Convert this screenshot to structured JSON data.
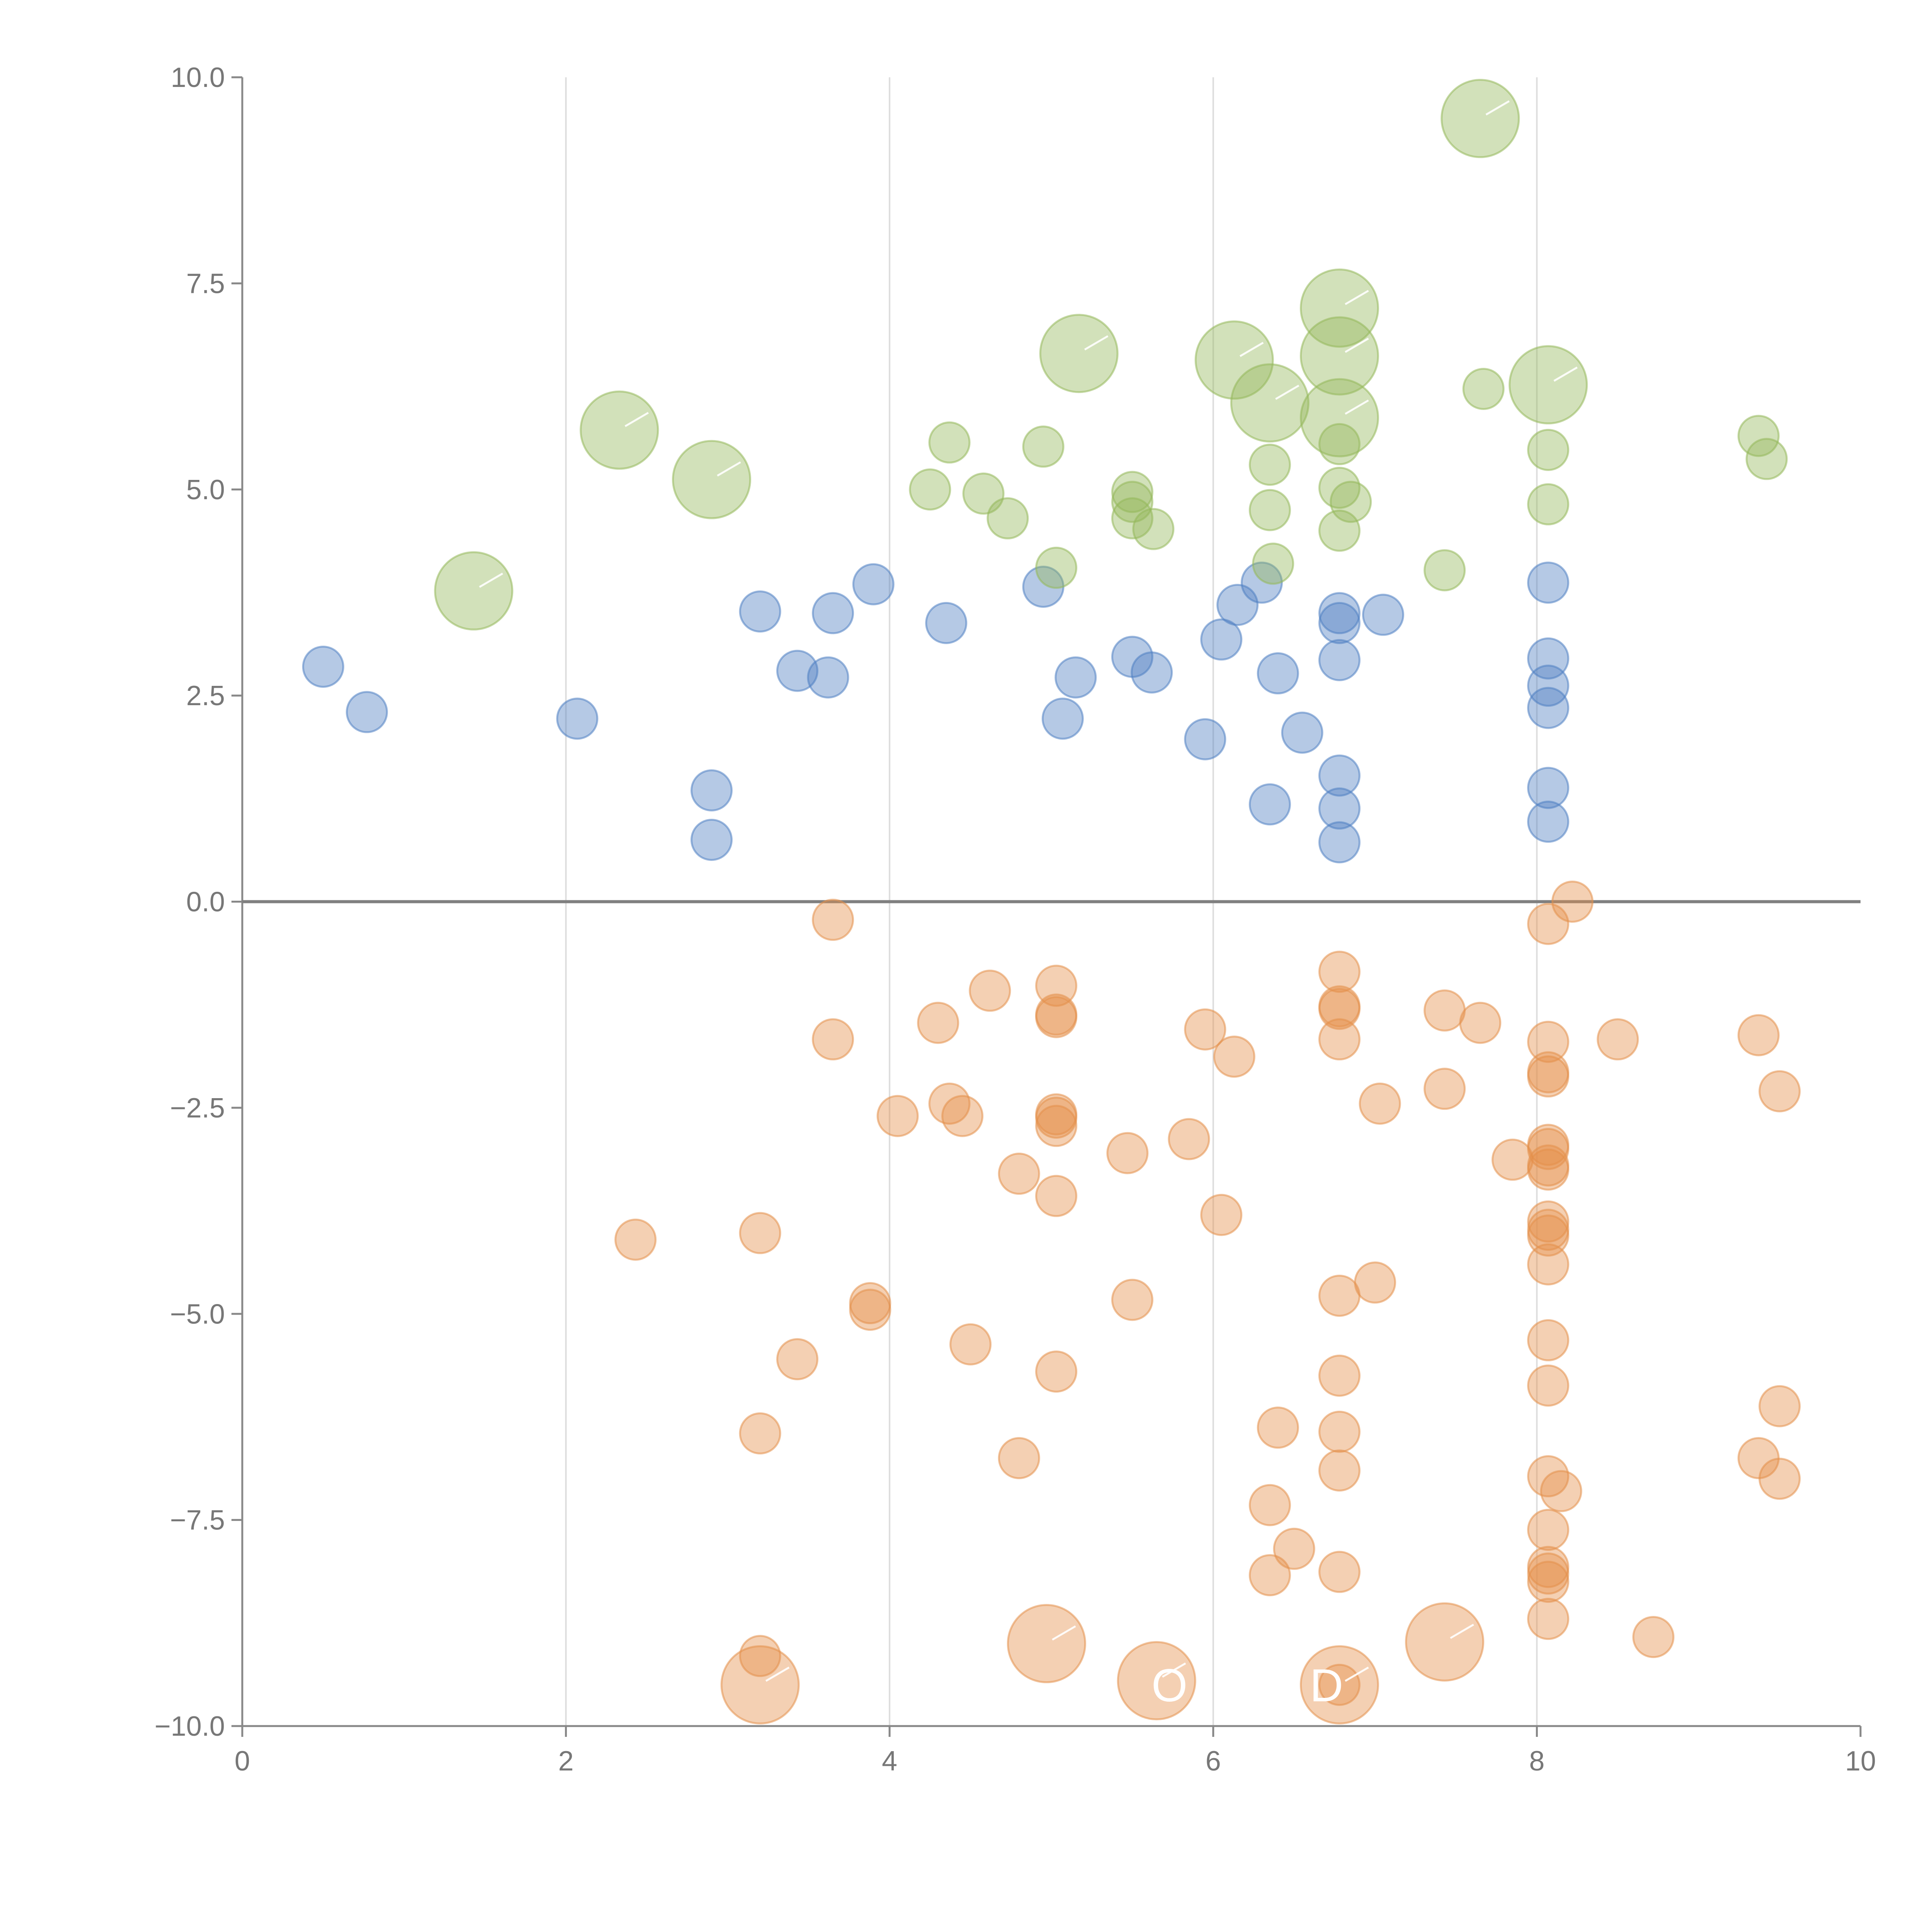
{
  "chart_data": {
    "type": "scatter",
    "title": "",
    "xlabel": "",
    "ylabel": "",
    "xlim": [
      0,
      10
    ],
    "ylim": [
      -10,
      10
    ],
    "x_ticks": [
      {
        "value": 0,
        "label": "0"
      },
      {
        "value": 2,
        "label": "2"
      },
      {
        "value": 4,
        "label": "4"
      },
      {
        "value": 6,
        "label": "6"
      },
      {
        "value": 8,
        "label": "8"
      },
      {
        "value": 10,
        "label": "10"
      }
    ],
    "y_ticks": [
      {
        "value": 10,
        "label": "10.0"
      },
      {
        "value": 7.5,
        "label": "7.5"
      },
      {
        "value": 5,
        "label": "5.0"
      },
      {
        "value": 2.5,
        "label": "2.5"
      },
      {
        "value": 0,
        "label": "0.0"
      },
      {
        "value": -2.5,
        "label": "−2.5"
      },
      {
        "value": -5,
        "label": "−5.0"
      },
      {
        "value": -7.5,
        "label": "−7.5"
      },
      {
        "value": -10,
        "label": "−10.0"
      }
    ],
    "x_grid_at": [
      2,
      4,
      6,
      8
    ],
    "zero_line": true,
    "legend": "none",
    "series": [
      {
        "name": "blue",
        "color": "#4f7fc2",
        "size": 1,
        "points": [
          [
            0.5,
            2.85
          ],
          [
            0.77,
            2.3
          ],
          [
            2.07,
            2.22
          ],
          [
            2.9,
            1.35
          ],
          [
            2.9,
            0.75
          ],
          [
            3.2,
            3.52
          ],
          [
            3.43,
            2.8
          ],
          [
            3.65,
            3.5
          ],
          [
            3.62,
            2.72
          ],
          [
            3.9,
            3.85
          ],
          [
            4.35,
            3.38
          ],
          [
            4.95,
            3.82
          ],
          [
            5.07,
            2.22
          ],
          [
            5.15,
            2.72
          ],
          [
            5.5,
            2.97
          ],
          [
            5.62,
            2.78
          ],
          [
            5.95,
            1.97
          ],
          [
            6.05,
            3.18
          ],
          [
            6.15,
            3.6
          ],
          [
            6.3,
            3.87
          ],
          [
            6.35,
            1.18
          ],
          [
            6.4,
            2.77
          ],
          [
            6.55,
            2.05
          ],
          [
            6.78,
            3.5
          ],
          [
            6.78,
            3.38
          ],
          [
            6.78,
            2.93
          ],
          [
            6.78,
            1.53
          ],
          [
            6.78,
            1.13
          ],
          [
            6.78,
            0.72
          ],
          [
            7.05,
            3.48
          ],
          [
            8.07,
            3.87
          ],
          [
            8.07,
            2.95
          ],
          [
            8.07,
            2.62
          ],
          [
            8.07,
            2.35
          ],
          [
            8.07,
            1.38
          ],
          [
            8.07,
            0.97
          ]
        ]
      },
      {
        "name": "green",
        "color": "#94b85a",
        "size": 1,
        "points": [
          [
            4.25,
            5.0
          ],
          [
            4.37,
            5.57
          ],
          [
            4.58,
            4.95
          ],
          [
            4.73,
            4.65
          ],
          [
            4.95,
            5.52
          ],
          [
            5.03,
            4.05
          ],
          [
            5.5,
            4.97
          ],
          [
            5.5,
            4.85
          ],
          [
            5.5,
            4.65
          ],
          [
            5.63,
            4.52
          ],
          [
            6.35,
            5.3
          ],
          [
            6.35,
            4.75
          ],
          [
            6.37,
            4.1
          ],
          [
            6.78,
            5.55
          ],
          [
            6.78,
            5.02
          ],
          [
            6.78,
            4.5
          ],
          [
            6.85,
            4.85
          ],
          [
            7.43,
            4.02
          ],
          [
            7.67,
            6.22
          ],
          [
            8.07,
            5.48
          ],
          [
            8.07,
            4.82
          ],
          [
            9.37,
            5.65
          ],
          [
            9.42,
            5.37
          ]
        ]
      },
      {
        "name": "green-large",
        "color": "#94b85a",
        "size": 2,
        "points": [
          [
            1.43,
            3.77
          ],
          [
            2.33,
            5.72
          ],
          [
            2.9,
            5.12
          ],
          [
            5.17,
            6.65
          ],
          [
            6.13,
            6.57
          ],
          [
            6.35,
            6.05
          ],
          [
            6.78,
            7.2
          ],
          [
            6.78,
            6.62
          ],
          [
            6.78,
            5.87
          ],
          [
            7.65,
            9.5
          ],
          [
            8.07,
            6.27
          ]
        ]
      },
      {
        "name": "orange",
        "color": "#e4904a",
        "size": 1,
        "points": [
          [
            3.65,
            -0.22
          ],
          [
            3.65,
            -1.67
          ],
          [
            2.43,
            -4.1
          ],
          [
            3.2,
            -4.02
          ],
          [
            3.43,
            -5.55
          ],
          [
            3.2,
            -6.45
          ],
          [
            3.2,
            -9.15
          ],
          [
            3.88,
            -4.87
          ],
          [
            3.88,
            -4.95
          ],
          [
            4.05,
            -2.6
          ],
          [
            4.3,
            -1.47
          ],
          [
            4.37,
            -2.45
          ],
          [
            4.45,
            -2.6
          ],
          [
            4.5,
            -5.37
          ],
          [
            4.62,
            -1.08
          ],
          [
            4.8,
            -3.3
          ],
          [
            4.8,
            -6.75
          ],
          [
            5.03,
            -1.02
          ],
          [
            5.03,
            -1.37
          ],
          [
            5.03,
            -1.4
          ],
          [
            5.03,
            -2.58
          ],
          [
            5.03,
            -2.72
          ],
          [
            5.03,
            -2.62
          ],
          [
            5.03,
            -3.57
          ],
          [
            5.03,
            -5.7
          ],
          [
            5.47,
            -3.05
          ],
          [
            5.5,
            -4.83
          ],
          [
            5.85,
            -2.88
          ],
          [
            5.95,
            -1.55
          ],
          [
            6.05,
            -3.8
          ],
          [
            6.13,
            -1.88
          ],
          [
            6.35,
            -7.32
          ],
          [
            6.35,
            -8.17
          ],
          [
            6.4,
            -6.38
          ],
          [
            6.5,
            -7.85
          ],
          [
            6.78,
            -0.85
          ],
          [
            6.78,
            -1.27
          ],
          [
            6.78,
            -1.3
          ],
          [
            6.78,
            -1.67
          ],
          [
            6.78,
            -4.78
          ],
          [
            6.78,
            -5.75
          ],
          [
            6.78,
            -6.43
          ],
          [
            6.78,
            -6.9
          ],
          [
            6.78,
            -8.13
          ],
          [
            6.78,
            -9.5
          ],
          [
            7.0,
            -4.62
          ],
          [
            7.03,
            -2.45
          ],
          [
            7.43,
            -1.32
          ],
          [
            7.43,
            -2.27
          ],
          [
            7.65,
            -1.47
          ],
          [
            7.85,
            -3.13
          ],
          [
            8.07,
            -0.27
          ],
          [
            8.22,
            0.0
          ],
          [
            8.07,
            -1.7
          ],
          [
            8.07,
            -2.07
          ],
          [
            8.07,
            -2.12
          ],
          [
            8.07,
            -2.95
          ],
          [
            8.07,
            -3.0
          ],
          [
            8.07,
            -3.2
          ],
          [
            8.07,
            -3.25
          ],
          [
            8.07,
            -3.88
          ],
          [
            8.07,
            -3.98
          ],
          [
            8.07,
            -4.05
          ],
          [
            8.07,
            -4.4
          ],
          [
            8.07,
            -5.32
          ],
          [
            8.07,
            -5.87
          ],
          [
            8.07,
            -6.97
          ],
          [
            8.15,
            -7.15
          ],
          [
            8.07,
            -7.62
          ],
          [
            8.07,
            -8.07
          ],
          [
            8.07,
            -8.15
          ],
          [
            8.07,
            -8.25
          ],
          [
            8.07,
            -8.7
          ],
          [
            8.5,
            -1.67
          ],
          [
            8.72,
            -8.92
          ],
          [
            9.37,
            -1.62
          ],
          [
            9.37,
            -6.75
          ],
          [
            9.5,
            -2.3
          ],
          [
            9.5,
            -6.12
          ],
          [
            9.5,
            -7.0
          ]
        ]
      },
      {
        "name": "orange-large",
        "color": "#e4904a",
        "size": 2,
        "points": [
          [
            3.2,
            -9.5
          ],
          [
            4.97,
            -9.0
          ],
          [
            5.65,
            -9.45
          ],
          [
            6.78,
            -9.5
          ],
          [
            7.43,
            -8.98
          ]
        ]
      }
    ],
    "annotations": [
      {
        "text": "O",
        "x": 5.73,
        "y": -9.7
      },
      {
        "text": "D",
        "x": 6.7,
        "y": -9.7
      }
    ]
  }
}
